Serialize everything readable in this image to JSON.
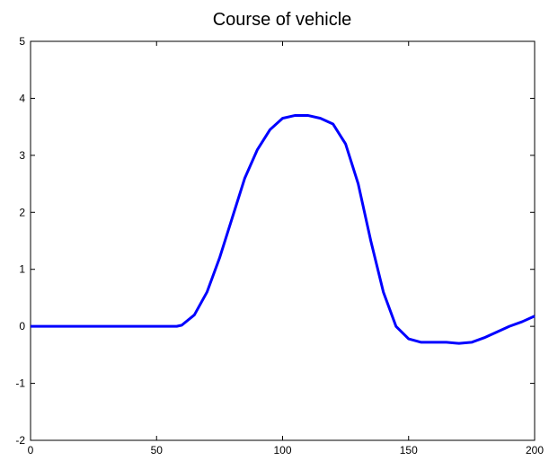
{
  "chart_data": {
    "type": "line",
    "title": "Course of vehicle",
    "x": [
      0,
      10,
      20,
      30,
      40,
      50,
      55,
      58,
      60,
      65,
      70,
      75,
      80,
      85,
      90,
      95,
      100,
      105,
      110,
      115,
      120,
      125,
      130,
      135,
      140,
      145,
      150,
      155,
      160,
      165,
      170,
      175,
      180,
      185,
      190,
      195,
      200
    ],
    "values": [
      0,
      0,
      0,
      0,
      0,
      0,
      0,
      0,
      0.02,
      0.2,
      0.6,
      1.2,
      1.9,
      2.6,
      3.1,
      3.45,
      3.65,
      3.7,
      3.7,
      3.65,
      3.55,
      3.2,
      2.5,
      1.5,
      0.6,
      0.0,
      -0.22,
      -0.28,
      -0.28,
      -0.28,
      -0.3,
      -0.28,
      -0.2,
      -0.1,
      0.0,
      0.08,
      0.18
    ],
    "color": "#0000ff",
    "xlim": [
      0,
      200
    ],
    "xticks": [
      0,
      50,
      100,
      150,
      200
    ],
    "ylim": [
      -2,
      5
    ],
    "yticks": [
      -2,
      -1,
      0,
      1,
      2,
      3,
      4,
      5
    ],
    "grid": false
  }
}
